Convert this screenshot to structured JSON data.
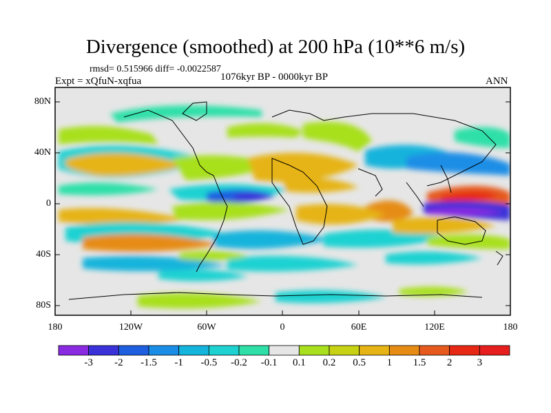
{
  "title": "Divergence (smoothed) at 200 hPa (10**6 m/s)",
  "stats": "rmsd= 0.515966  diff= -0.0022587",
  "experiment": "Expt = xQfuN-xqfua",
  "period": "1076kyr BP - 0000kyr BP",
  "season": "ANN",
  "axes": {
    "y_ticks": [
      "80N",
      "40N",
      "0",
      "40S",
      "80S"
    ],
    "x_ticks": [
      "180",
      "120W",
      "60W",
      "0",
      "60E",
      "120E",
      "180"
    ]
  },
  "colorbar": {
    "labels": [
      "-3",
      "-2",
      "-1.5",
      "-1",
      "-0.5",
      "-0.2",
      "-0.1",
      "0.1",
      "0.2",
      "0.5",
      "1",
      "1.5",
      "2",
      "3"
    ],
    "colors": [
      "#8a2be2",
      "#3a32d8",
      "#1e5fe0",
      "#1a8ee6",
      "#14b4dc",
      "#1ed2d2",
      "#2ee0a8",
      "#e6e6e6",
      "#a8e01e",
      "#c8d214",
      "#e6b414",
      "#e68c14",
      "#e65a1e",
      "#e62814",
      "#e61e1e"
    ]
  }
}
